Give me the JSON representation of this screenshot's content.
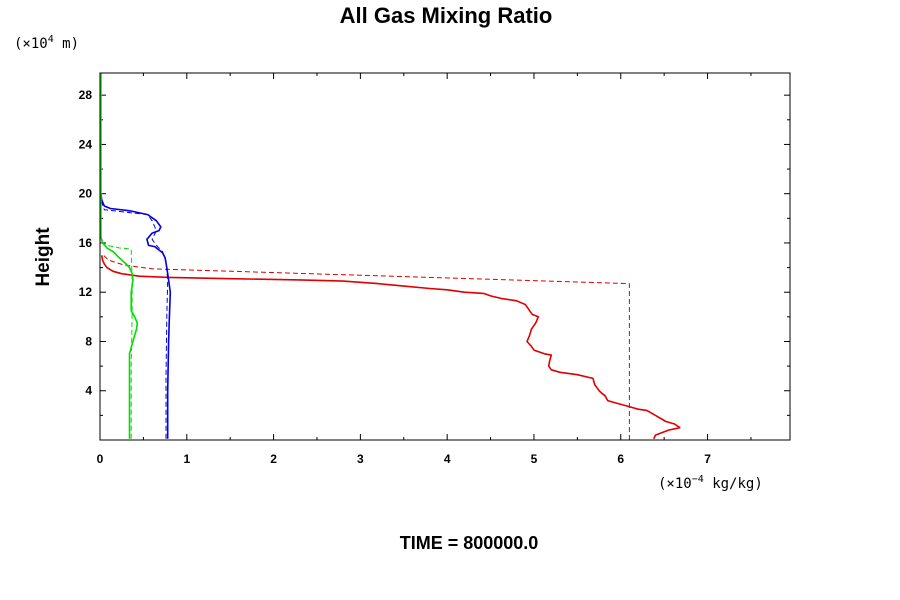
{
  "chart_data": {
    "type": "line",
    "title": "All Gas Mixing Ratio",
    "ylabel": "Height",
    "y_unit_prefix": "(×10",
    "y_unit_exp": "4",
    "y_unit_suffix": " m)",
    "x_unit_prefix": "(×10",
    "x_unit_exp": "−4",
    "x_unit_suffix": " kg/kg)",
    "xlim": [
      0,
      7.95
    ],
    "ylim": [
      0,
      29.8
    ],
    "x_ticks": [
      0,
      1,
      2,
      3,
      4,
      5,
      6,
      7
    ],
    "x_tick_labels": [
      "0",
      "1",
      "2",
      "3",
      "4",
      "5",
      "6",
      "7"
    ],
    "y_ticks": [
      4,
      8,
      12,
      16,
      20,
      24,
      28
    ],
    "y_tick_labels": [
      "4",
      "8",
      "12",
      "16",
      "20",
      "24",
      "28"
    ],
    "footer": "TIME = 800000.0",
    "series": [
      {
        "name": "red-solid",
        "color": "#e00000",
        "dash": "solid",
        "points": [
          [
            6.38,
            0.1
          ],
          [
            6.4,
            0.4
          ],
          [
            6.55,
            0.8
          ],
          [
            6.68,
            1.0
          ],
          [
            6.62,
            1.3
          ],
          [
            6.52,
            1.5
          ],
          [
            6.4,
            2.0
          ],
          [
            6.3,
            2.4
          ],
          [
            6.2,
            2.5
          ],
          [
            6.05,
            2.8
          ],
          [
            5.95,
            3.0
          ],
          [
            5.85,
            3.2
          ],
          [
            5.82,
            3.6
          ],
          [
            5.78,
            3.8
          ],
          [
            5.75,
            4.0
          ],
          [
            5.7,
            4.5
          ],
          [
            5.68,
            5.0
          ],
          [
            5.5,
            5.3
          ],
          [
            5.3,
            5.5
          ],
          [
            5.2,
            5.7
          ],
          [
            5.17,
            6.0
          ],
          [
            5.18,
            6.4
          ],
          [
            5.2,
            6.9
          ],
          [
            5.12,
            7.0
          ],
          [
            5.0,
            7.3
          ],
          [
            4.97,
            7.6
          ],
          [
            4.92,
            8.0
          ],
          [
            4.95,
            8.5
          ],
          [
            4.97,
            9.0
          ],
          [
            5.02,
            9.5
          ],
          [
            5.05,
            10.0
          ],
          [
            4.98,
            10.2
          ],
          [
            4.93,
            10.7
          ],
          [
            4.9,
            11.0
          ],
          [
            4.8,
            11.3
          ],
          [
            4.62,
            11.5
          ],
          [
            4.5,
            11.7
          ],
          [
            4.42,
            11.9
          ],
          [
            4.2,
            12.0
          ],
          [
            4.0,
            12.2
          ],
          [
            3.8,
            12.3
          ],
          [
            3.5,
            12.5
          ],
          [
            3.2,
            12.7
          ],
          [
            2.8,
            12.9
          ],
          [
            2.3,
            13.0
          ],
          [
            1.5,
            13.1
          ],
          [
            0.8,
            13.2
          ],
          [
            0.45,
            13.3
          ],
          [
            0.25,
            13.5
          ],
          [
            0.15,
            13.7
          ],
          [
            0.08,
            14.0
          ],
          [
            0.05,
            14.3
          ],
          [
            0.03,
            14.6
          ],
          [
            0.02,
            15.0
          ]
        ]
      },
      {
        "name": "red-dashed",
        "color": "#e00000",
        "dash": "dashed",
        "points": [
          [
            6.1,
            0
          ],
          [
            6.1,
            12.7
          ],
          [
            0.6,
            13.9
          ],
          [
            0.28,
            14.2
          ],
          [
            0.1,
            14.6
          ],
          [
            0.04,
            15.0
          ]
        ]
      },
      {
        "name": "blue-solid",
        "color": "#0000e0",
        "dash": "solid",
        "points": [
          [
            0.78,
            0.1
          ],
          [
            0.78,
            4.0
          ],
          [
            0.79,
            8.0
          ],
          [
            0.8,
            10.0
          ],
          [
            0.81,
            12.0
          ],
          [
            0.79,
            13.0
          ],
          [
            0.77,
            14.0
          ],
          [
            0.75,
            14.8
          ],
          [
            0.72,
            15.2
          ],
          [
            0.63,
            15.7
          ],
          [
            0.56,
            15.8
          ],
          [
            0.54,
            16.3
          ],
          [
            0.6,
            16.8
          ],
          [
            0.68,
            17.0
          ],
          [
            0.7,
            17.3
          ],
          [
            0.65,
            17.8
          ],
          [
            0.55,
            18.3
          ],
          [
            0.35,
            18.6
          ],
          [
            0.12,
            18.8
          ],
          [
            0.05,
            19.0
          ],
          [
            0.02,
            19.5
          ],
          [
            0.01,
            20.0
          ]
        ]
      },
      {
        "name": "blue-dashed",
        "color": "#0000e0",
        "dash": "dashed",
        "points": [
          [
            0.76,
            0.1
          ],
          [
            0.76,
            5.0
          ],
          [
            0.77,
            10.0
          ],
          [
            0.78,
            13.0
          ],
          [
            0.76,
            14.5
          ],
          [
            0.72,
            15.3
          ],
          [
            0.65,
            15.8
          ],
          [
            0.6,
            16.3
          ],
          [
            0.65,
            17.0
          ],
          [
            0.6,
            17.8
          ],
          [
            0.55,
            18.3
          ],
          [
            0.3,
            18.5
          ],
          [
            0.05,
            18.7
          ],
          [
            0.01,
            19.5
          ]
        ]
      },
      {
        "name": "green-solid",
        "color": "#00dd00",
        "dash": "solid",
        "points": [
          [
            0.34,
            0.1
          ],
          [
            0.34,
            4.0
          ],
          [
            0.34,
            7.0
          ],
          [
            0.36,
            7.5
          ],
          [
            0.4,
            8.5
          ],
          [
            0.42,
            9.0
          ],
          [
            0.43,
            9.5
          ],
          [
            0.4,
            10.0
          ],
          [
            0.36,
            10.5
          ],
          [
            0.36,
            12.0
          ],
          [
            0.38,
            13.0
          ],
          [
            0.37,
            13.5
          ],
          [
            0.34,
            14.0
          ],
          [
            0.3,
            14.3
          ],
          [
            0.22,
            14.8
          ],
          [
            0.15,
            15.3
          ],
          [
            0.08,
            15.6
          ],
          [
            0.03,
            16.0
          ],
          [
            0.01,
            16.5
          ],
          [
            0.01,
            20.0
          ],
          [
            0.01,
            29.8
          ]
        ]
      },
      {
        "name": "green-dashed",
        "color": "#00dd00",
        "dash": "dashed",
        "points": [
          [
            0.36,
            0.1
          ],
          [
            0.36,
            6.0
          ],
          [
            0.37,
            10.0
          ],
          [
            0.37,
            13.0
          ],
          [
            0.36,
            15.5
          ],
          [
            0.22,
            15.6
          ],
          [
            0.08,
            15.8
          ],
          [
            0.02,
            16.0
          ],
          [
            0.0,
            16.5
          ]
        ]
      }
    ]
  }
}
